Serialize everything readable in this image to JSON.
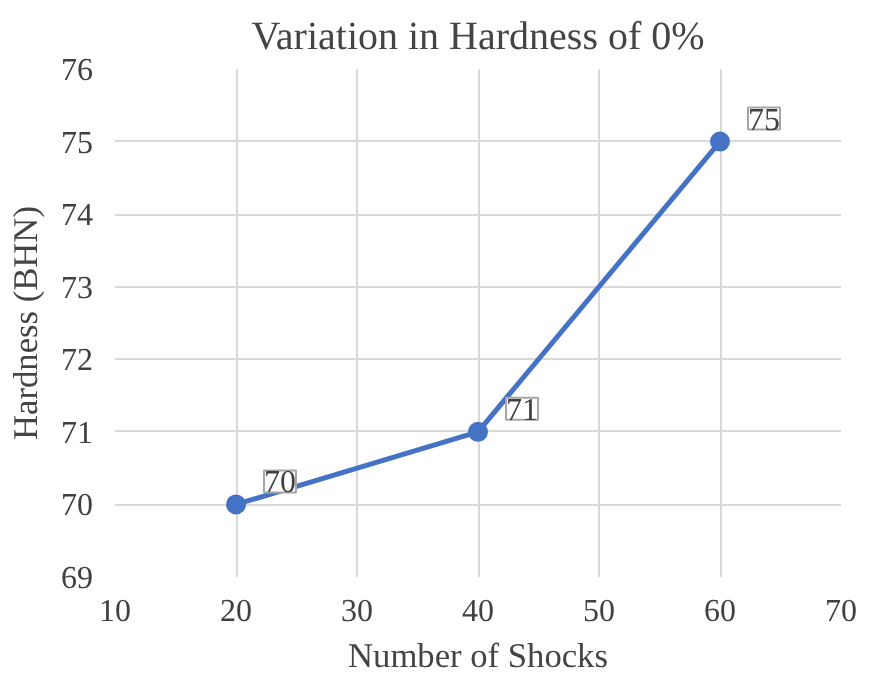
{
  "chart_data": {
    "type": "line",
    "title": "Variation in Hardness of 0%",
    "xlabel": "Number of Shocks",
    "ylabel": "Hardness (BHN)",
    "x": [
      20,
      40,
      60
    ],
    "series": [
      {
        "color": "#4472c4",
        "values": [
          70,
          71,
          75
        ]
      }
    ],
    "xlim": [
      10,
      70
    ],
    "xticks": [
      10,
      20,
      30,
      40,
      50,
      60,
      70
    ],
    "ylim": [
      69,
      76
    ],
    "yticks": [
      69,
      70,
      71,
      72,
      73,
      74,
      75,
      76
    ],
    "grid": true,
    "marker": "circle",
    "line_style": "solid",
    "data_labels": true
  }
}
